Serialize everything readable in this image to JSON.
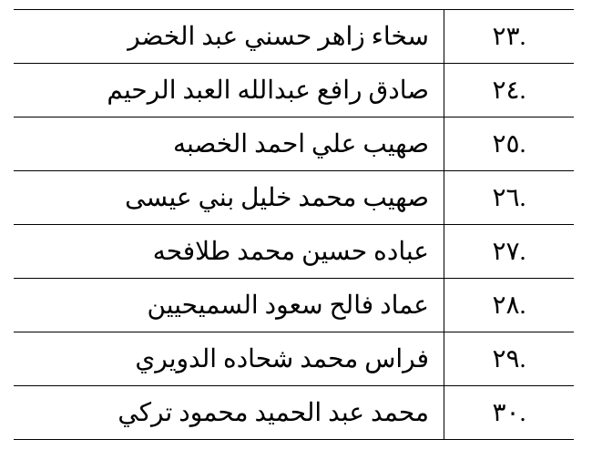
{
  "table": {
    "text_color": "#000000",
    "background_color": "#ffffff",
    "border_color": "#000000",
    "font_size_pt": 21,
    "rows": [
      {
        "num": ".٢٣",
        "name": "سخاء زاهر حسني عبد الخضر"
      },
      {
        "num": ".٢٤",
        "name": "صادق رافع عبدالله العبد الرحيم"
      },
      {
        "num": ".٢٥",
        "name": "صهيب علي احمد الخصبه"
      },
      {
        "num": ".٢٦",
        "name": "صهيب محمد خليل بني عيسى"
      },
      {
        "num": ".٢٧",
        "name": "عباده حسين محمد طلافحه"
      },
      {
        "num": ".٢٨",
        "name": "عماد فالح سعود السميحيين"
      },
      {
        "num": ".٢٩",
        "name": "فراس محمد شحاده الدويري"
      },
      {
        "num": ".٣٠",
        "name": "محمد عبد الحميد محمود تركي"
      }
    ]
  }
}
